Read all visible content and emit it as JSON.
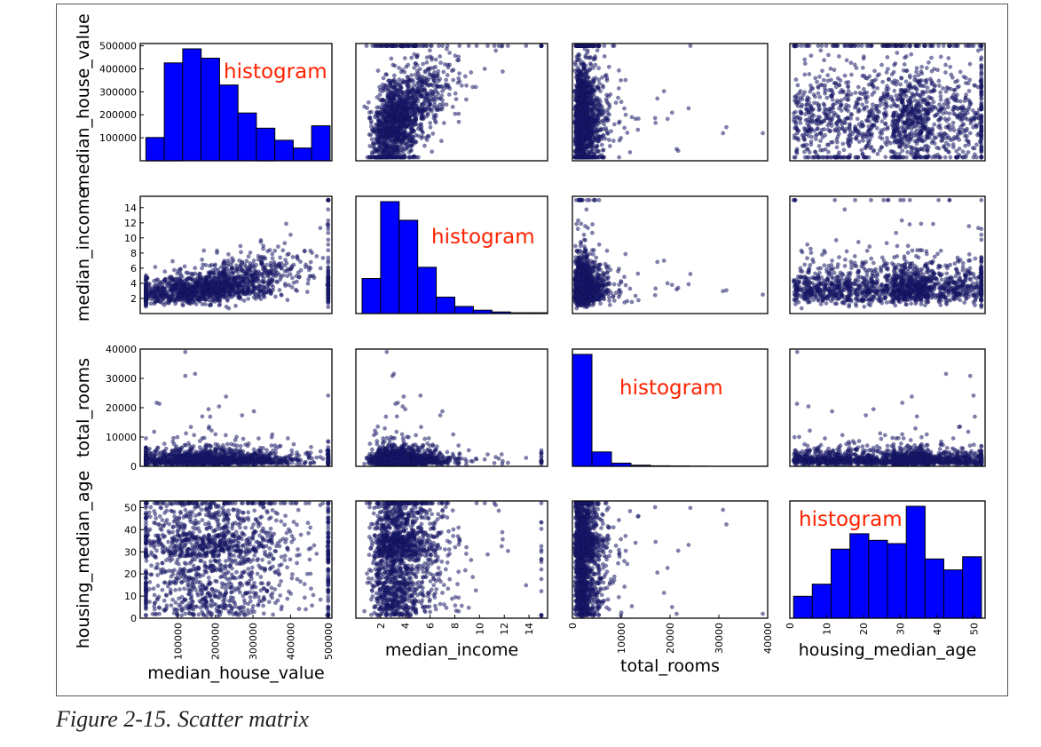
{
  "figure": {
    "caption": "Figure 2-15. Scatter matrix",
    "annotation_text": "histogram",
    "colors": {
      "histogram_bar": "#0000ff",
      "scatter_point": "#1a1a6e",
      "annotation": "#ff2200",
      "frame": "#555555"
    }
  },
  "chart_data": {
    "type": "scatter",
    "chart_kind": "scatter_matrix",
    "variables": [
      "median_house_value",
      "median_income",
      "total_rooms",
      "housing_median_age"
    ],
    "axis_ranges": {
      "median_house_value": [
        0,
        510000
      ],
      "median_income": [
        0,
        15.5
      ],
      "total_rooms": [
        0,
        40000
      ],
      "housing_median_age": [
        0,
        53
      ]
    },
    "y_ticks": {
      "median_house_value": [
        100000,
        200000,
        300000,
        400000,
        500000
      ],
      "median_income": [
        2,
        4,
        6,
        8,
        10,
        12,
        14
      ],
      "total_rooms": [
        0,
        10000,
        20000,
        30000,
        40000
      ],
      "housing_median_age": [
        0,
        10,
        20,
        30,
        40,
        50
      ]
    },
    "x_ticks": {
      "median_house_value": [
        100000,
        200000,
        300000,
        400000,
        500000
      ],
      "median_income": [
        2,
        4,
        6,
        8,
        10,
        12,
        14
      ],
      "total_rooms": [
        0,
        10000,
        20000,
        30000,
        40000
      ],
      "housing_median_age": [
        0,
        10,
        20,
        30,
        40,
        50
      ]
    },
    "histograms": {
      "median_house_value": {
        "bins": [
          15000,
          64000,
          113000,
          162000,
          211000,
          260000,
          309000,
          358000,
          407000,
          456000,
          505000
        ],
        "counts": [
          100,
          420,
          480,
          440,
          325,
          205,
          140,
          88,
          55,
          150
        ]
      },
      "median_income": {
        "bins": [
          0.5,
          2.0,
          3.5,
          5.0,
          6.5,
          8.0,
          9.5,
          11.0,
          12.5,
          14.0,
          15.5
        ],
        "counts": [
          4.7,
          15.0,
          12.5,
          6.2,
          2.2,
          0.95,
          0.45,
          0.22,
          0.11,
          0.11
        ]
      },
      "total_rooms": {
        "bins": [
          0,
          4000,
          8000,
          12000,
          16000,
          20000,
          24000,
          28000,
          32000,
          36000,
          40000
        ],
        "counts": [
          35,
          4.5,
          1.0,
          0.35,
          0.18,
          0.1,
          0.06,
          0.04,
          0.03,
          0.02
        ]
      },
      "housing_median_age": {
        "bins": [
          1,
          6.1,
          11.2,
          16.3,
          21.4,
          26.5,
          31.6,
          36.7,
          41.8,
          46.9,
          52
        ],
        "counts": [
          10,
          15.5,
          31.5,
          38.5,
          35.5,
          34,
          51,
          27,
          22,
          28
        ]
      }
    },
    "scatter_points": [
      {
        "median_house_value": 452600,
        "median_income": 8.3,
        "total_rooms": 880,
        "housing_median_age": 41
      },
      {
        "median_house_value": 358500,
        "median_income": 8.3,
        "total_rooms": 7099,
        "housing_median_age": 21
      },
      {
        "median_house_value": 352100,
        "median_income": 7.3,
        "total_rooms": 1467,
        "housing_median_age": 52
      },
      {
        "median_house_value": 341300,
        "median_income": 5.6,
        "total_rooms": 1274,
        "housing_median_age": 52
      },
      {
        "median_house_value": 342200,
        "median_income": 3.8,
        "total_rooms": 1627,
        "housing_median_age": 52
      },
      {
        "median_house_value": 269700,
        "median_income": 4.0,
        "total_rooms": 919,
        "housing_median_age": 52
      },
      {
        "median_house_value": 299200,
        "median_income": 3.7,
        "total_rooms": 2535,
        "housing_median_age": 52
      },
      {
        "median_house_value": 241400,
        "median_income": 3.1,
        "total_rooms": 3104,
        "housing_median_age": 52
      },
      {
        "median_house_value": 226700,
        "median_income": 2.1,
        "total_rooms": 2555,
        "housing_median_age": 42
      },
      {
        "median_house_value": 500001,
        "median_income": 15.0,
        "total_rooms": 3500,
        "housing_median_age": 30
      },
      {
        "median_house_value": 120000,
        "median_income": 2.5,
        "total_rooms": 39000,
        "housing_median_age": 2
      },
      {
        "median_house_value": 95000,
        "median_income": 1.9,
        "total_rooms": 2100,
        "housing_median_age": 18
      },
      {
        "median_house_value": 180000,
        "median_income": 3.6,
        "total_rooms": 4500,
        "housing_median_age": 15
      }
    ],
    "xlabels": [
      "median_house_value",
      "median_income",
      "total_rooms",
      "housing_median_age"
    ],
    "ylabels": [
      "median_house_value",
      "median_income",
      "total_rooms",
      "housing_median_age"
    ],
    "grid": false,
    "legend": "none"
  }
}
